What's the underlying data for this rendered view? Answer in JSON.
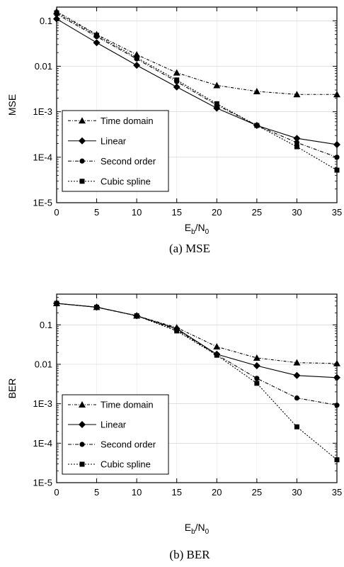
{
  "chart_data": [
    {
      "type": "line",
      "caption": "(a)  MSE",
      "ylabel": "MSE",
      "xlabel": "E_b/N_0",
      "xlabel_main": "E",
      "xlabel_sub1": "b",
      "xlabel_mid": "/N",
      "xlabel_sub2": "0",
      "yscale": "log",
      "xlim": [
        0,
        35
      ],
      "ylim": [
        1e-05,
        0.2
      ],
      "x_ticks": [
        0,
        5,
        10,
        15,
        20,
        25,
        30,
        35
      ],
      "x_tick_labels": [
        "0",
        "5",
        "10",
        "15",
        "20",
        "25",
        "30",
        "35"
      ],
      "y_ticks": [
        0.1,
        0.01,
        0.001,
        0.0001,
        1e-05
      ],
      "y_tick_labels": [
        "0.1",
        "0.01",
        "1E-3",
        "1E-4",
        "1E-5"
      ],
      "legend_position": "lower-left",
      "x": [
        0,
        5,
        10,
        15,
        20,
        25,
        30,
        35
      ],
      "series": [
        {
          "name": "Time domain",
          "marker": "triangle",
          "dash": "4,2,1,2",
          "values": [
            0.16,
            0.05,
            0.018,
            0.0072,
            0.0038,
            0.0028,
            0.0024,
            0.0024
          ]
        },
        {
          "name": "Linear",
          "marker": "diamond",
          "dash": "none",
          "values": [
            0.11,
            0.033,
            0.0105,
            0.0035,
            0.0012,
            0.0005,
            0.00026,
            0.00019
          ]
        },
        {
          "name": "Second order",
          "marker": "circle",
          "dash": "5,2,1,2",
          "values": [
            0.14,
            0.045,
            0.0145,
            0.0046,
            0.0014,
            0.0005,
            0.00021,
            0.0001
          ]
        },
        {
          "name": "Cubic spline",
          "marker": "square",
          "dash": "2,2",
          "values": [
            0.15,
            0.048,
            0.0155,
            0.005,
            0.0015,
            0.0005,
            0.00017,
            5.2e-05
          ]
        }
      ]
    },
    {
      "type": "line",
      "caption": "(b)  BER",
      "ylabel": "BER",
      "xlabel": "E_b/N_0",
      "xlabel_main": "E",
      "xlabel_sub1": "b",
      "xlabel_mid": "/N",
      "xlabel_sub2": "0",
      "yscale": "log",
      "xlim": [
        0,
        35
      ],
      "ylim": [
        1e-05,
        0.6
      ],
      "x_ticks": [
        0,
        5,
        10,
        15,
        20,
        25,
        30,
        35
      ],
      "x_tick_labels": [
        "0",
        "5",
        "10",
        "15",
        "20",
        "25",
        "30",
        "35"
      ],
      "y_ticks": [
        0.1,
        0.01,
        0.001,
        0.0001,
        1e-05
      ],
      "y_tick_labels": [
        "0.1",
        "0.01",
        "1E-3",
        "1E-4",
        "1E-5"
      ],
      "legend_position": "lower-left",
      "x": [
        0,
        5,
        10,
        15,
        20,
        25,
        30,
        35
      ],
      "series": [
        {
          "name": "Time domain",
          "marker": "triangle",
          "dash": "4,2,1,2",
          "values": [
            0.35,
            0.28,
            0.17,
            0.085,
            0.028,
            0.0145,
            0.011,
            0.0105
          ]
        },
        {
          "name": "Linear",
          "marker": "diamond",
          "dash": "none",
          "values": [
            0.35,
            0.28,
            0.17,
            0.08,
            0.018,
            0.0092,
            0.0052,
            0.0046
          ]
        },
        {
          "name": "Second order",
          "marker": "circle",
          "dash": "5,2,1,2",
          "values": [
            0.35,
            0.28,
            0.17,
            0.075,
            0.0175,
            0.0044,
            0.0014,
            0.00092
          ]
        },
        {
          "name": "Cubic spline",
          "marker": "square",
          "dash": "2,2",
          "values": [
            0.35,
            0.28,
            0.17,
            0.07,
            0.017,
            0.0033,
            0.00026,
            3.8e-05
          ]
        }
      ]
    }
  ]
}
